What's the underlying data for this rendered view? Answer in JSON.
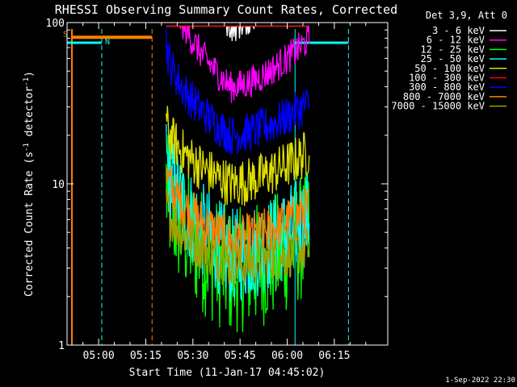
{
  "chart_data": {
    "type": "line",
    "title": "RHESSI Observing Summary Count Rates, Corrected",
    "xlabel": "Start Time (11-Jan-17 04:45:02)",
    "ylabel_main": "Corrected Count Rate (s",
    "ylabel_sup1": "-1",
    "ylabel_mid": " detector",
    "ylabel_sup2": "-1",
    "ylabel_end": ")",
    "y_scale": "log",
    "ylim": [
      1,
      100
    ],
    "xlim_minutes": [
      4.95,
      107.0
    ],
    "x_ticks": [
      {
        "label": "05:00",
        "minutes": 15
      },
      {
        "label": "05:15",
        "minutes": 30
      },
      {
        "label": "05:30",
        "minutes": 45
      },
      {
        "label": "05:45",
        "minutes": 60
      },
      {
        "label": "06:00",
        "minutes": 75
      },
      {
        "label": "06:15",
        "minutes": 90
      }
    ],
    "y_ticks": [
      {
        "label": "1",
        "value": 1
      },
      {
        "label": "10",
        "value": 10
      },
      {
        "label": "100",
        "value": 100
      }
    ],
    "legend_header": "Det 3,9, Att 0",
    "legend_position": "top-right, outside plot",
    "timestamp": "1-Sep-2022 22:30",
    "series": [
      {
        "name": "3 - 6 keV",
        "color": "#ffffff",
        "start": 3.2,
        "mid": 2.0,
        "end": 2.5,
        "noise": 0.25
      },
      {
        "name": "6 - 12 keV",
        "color": "#ff00ff",
        "start": 2.4,
        "mid": 1.6,
        "end": 1.9,
        "noise": 0.2
      },
      {
        "name": "12 - 25 keV",
        "color": "#00ff00",
        "start": 1.0,
        "mid": 0.45,
        "end": 0.7,
        "noise": 0.8
      },
      {
        "name": "25 - 50 keV",
        "color": "#00ffff",
        "start": 1.2,
        "mid": 0.55,
        "end": 0.8,
        "noise": 0.6
      },
      {
        "name": "50 - 100 keV",
        "color": "#e0e000",
        "start": 1.4,
        "mid": 1.0,
        "end": 1.2,
        "noise": 0.3
      },
      {
        "name": "100 - 300 keV",
        "color": "#ff0000",
        "start": 3.2,
        "mid": 2.2,
        "end": 2.7,
        "noise": 0.3
      },
      {
        "name": "300 - 800 keV",
        "color": "#0000ff",
        "start": 1.9,
        "mid": 1.3,
        "end": 1.5,
        "noise": 0.25
      },
      {
        "name": "800 - 7000 keV",
        "color": "#ff8000",
        "start": 1.1,
        "mid": 0.65,
        "end": 0.85,
        "noise": 0.3
      },
      {
        "name": "7000 - 15000 keV",
        "color": "#a0a000",
        "start": 0.9,
        "mid": 0.5,
        "end": 0.6,
        "noise": 0.3
      }
    ],
    "data_window_minutes": [
      36.5,
      82.0
    ],
    "markers": {
      "S_label": "S",
      "N_label": "N",
      "S_bar_minutes": [
        6.5,
        32.0
      ],
      "S_bar_value": 81,
      "N_bar_minutes": [
        [
          4.95,
          16.0
        ],
        [
          77.5,
          94.5
        ]
      ],
      "N_bar_value": 75,
      "orange_lines_minutes": [
        6.5,
        32.0
      ],
      "cyan_lines_minutes": [
        16.0,
        77.5,
        94.5
      ]
    }
  }
}
